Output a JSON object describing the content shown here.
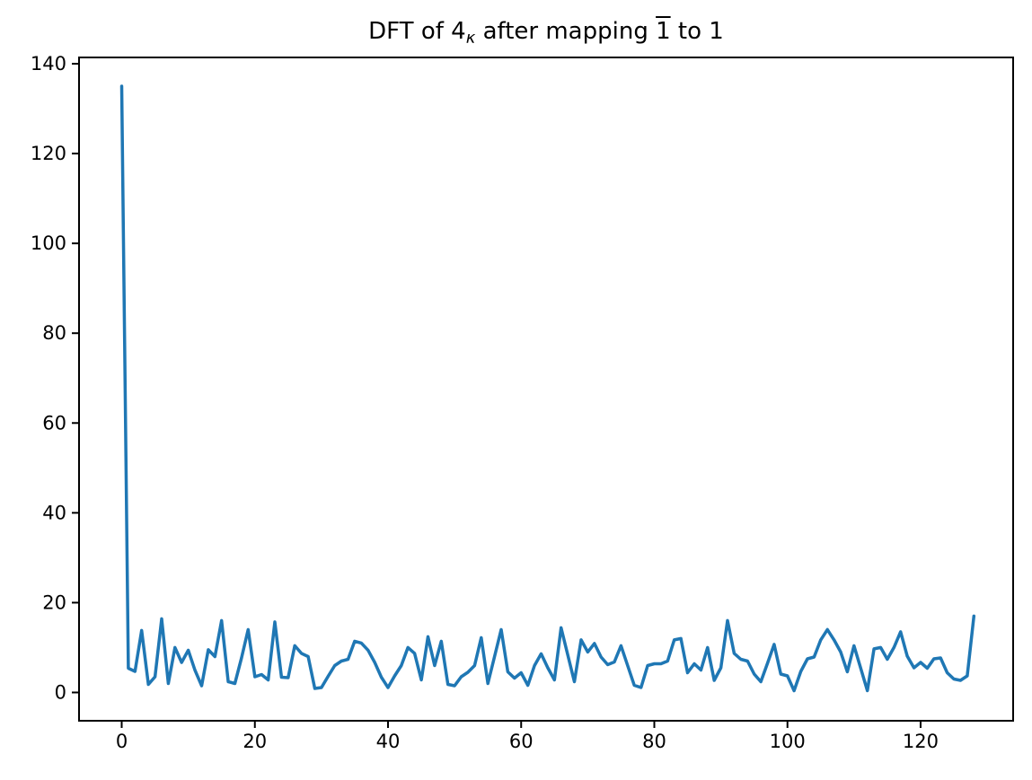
{
  "title": {
    "prefix": "DFT of 4",
    "subscript": "κ",
    "mid": " after mapping ",
    "overbar_digit": "1",
    "tail": " to 1"
  },
  "chart_data": {
    "type": "line",
    "title": "DFT of 4κ after mapping 1̄ to 1",
    "xlabel": "",
    "ylabel": "",
    "line_color": "#1f77b4",
    "background_color": "#ffffff",
    "grid": false,
    "legend": "none",
    "x_start": 0,
    "x_step": 1,
    "x_ticks": [
      0,
      20,
      40,
      60,
      80,
      100,
      120
    ],
    "y_ticks": [
      0,
      20,
      40,
      60,
      80,
      100,
      120,
      140
    ],
    "xlim": [
      -6.41,
      133.9
    ],
    "ylim": [
      -6.3,
      141.4
    ],
    "values": [
      135,
      5.4,
      4.7,
      13.8,
      1.8,
      3.5,
      16.4,
      2.0,
      10.0,
      6.7,
      9.4,
      5.0,
      1.5,
      9.5,
      8.0,
      16.0,
      2.4,
      2.0,
      7.7,
      14.0,
      3.5,
      4.0,
      2.8,
      15.7,
      3.4,
      3.3,
      10.4,
      8.7,
      8.0,
      0.9,
      1.1,
      3.6,
      6.0,
      7.0,
      7.4,
      11.4,
      11.0,
      9.4,
      6.7,
      3.4,
      1.1,
      3.7,
      6.0,
      10.0,
      8.7,
      2.8,
      12.4,
      6.0,
      11.4,
      1.8,
      1.5,
      3.5,
      4.5,
      6.0,
      12.2,
      2.0,
      8.0,
      14.0,
      4.6,
      3.2,
      4.4,
      1.6,
      6.0,
      8.6,
      5.5,
      2.8,
      14.4,
      8.4,
      2.4,
      11.7,
      9.0,
      10.9,
      7.9,
      6.2,
      6.8,
      10.4,
      6.0,
      1.6,
      1.1,
      6.0,
      6.4,
      6.4,
      7.0,
      11.7,
      12.0,
      4.4,
      6.4,
      5.0,
      10.0,
      2.7,
      5.5,
      16.0,
      8.7,
      7.4,
      7.0,
      4.1,
      2.4,
      6.5,
      10.7,
      4.1,
      3.7,
      0.4,
      4.7,
      7.5,
      7.9,
      11.7,
      14.0,
      11.7,
      9.0,
      4.6,
      10.4,
      5.4,
      0.4,
      9.7,
      10.0,
      7.4,
      10.0,
      13.5,
      8.1,
      5.5,
      6.7,
      5.4,
      7.5,
      7.7,
      4.4,
      3.0,
      2.7,
      3.7,
      17.0
    ]
  }
}
